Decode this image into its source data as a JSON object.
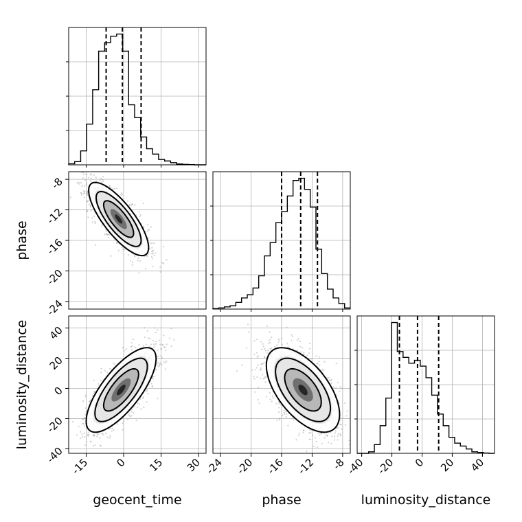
{
  "chart_data": {
    "type": "corner",
    "parameters": [
      {
        "name": "geocent_time",
        "label": "geocent_time",
        "ticks": [
          -15,
          0,
          15,
          30
        ],
        "lim": [
          -22,
          33
        ],
        "quantiles": [
          -7,
          -0.5,
          7
        ]
      },
      {
        "name": "phase",
        "label": "phase",
        "ticks": [
          -24,
          -20,
          -16,
          -12,
          -8
        ],
        "lim": [
          -25,
          -7
        ],
        "quantiles": [
          -16,
          -13.5,
          -11.3
        ]
      },
      {
        "name": "luminosity_distance",
        "label": "luminosity_distance",
        "ticks": [
          -40,
          -20,
          0,
          20,
          40
        ],
        "lim": [
          -43,
          48
        ],
        "quantiles": [
          -15,
          -3,
          11
        ]
      }
    ],
    "histograms": [
      {
        "param": "geocent_time",
        "bin_edges": [
          -22,
          -19.6,
          -17.2,
          -14.8,
          -12.4,
          -10,
          -7.6,
          -5.2,
          -2.8,
          -0.4,
          2,
          4.4,
          6.8,
          9.2,
          11.6,
          14,
          16.4,
          18.8,
          21.2,
          23.6,
          26,
          28.4,
          30.8,
          33
        ],
        "counts": [
          0.5,
          1.5,
          6.5,
          19,
          35,
          53,
          57,
          60,
          61,
          53,
          28,
          22,
          13,
          7.5,
          5,
          2.5,
          1.8,
          1,
          0.4,
          0.2,
          0.1,
          0,
          0
        ]
      },
      {
        "param": "phase",
        "bin_edges": [
          -25,
          -24.25,
          -23.5,
          -22.75,
          -22,
          -21.25,
          -20.5,
          -19.75,
          -19,
          -18.25,
          -17.5,
          -16.75,
          -16,
          -15.25,
          -14.5,
          -13.75,
          -13,
          -12.25,
          -11.5,
          -10.75,
          -10,
          -9.25,
          -8.5,
          -7.75,
          -7
        ],
        "counts": [
          0.2,
          0.5,
          1,
          1.5,
          3,
          5,
          6.5,
          9.5,
          15,
          24,
          30,
          39,
          44,
          51,
          58,
          59,
          54,
          46,
          27,
          16,
          9,
          5,
          2.5,
          0.5
        ]
      },
      {
        "param": "luminosity_distance",
        "bin_edges": [
          -43,
          -39.2,
          -35.4,
          -31.6,
          -27.8,
          -24,
          -20.2,
          -16.4,
          -12.6,
          -8.8,
          -5,
          -1.2,
          2.6,
          6.4,
          10.2,
          14,
          17.8,
          21.6,
          25.4,
          29.2,
          33,
          36.8,
          40.6,
          44.4,
          48
        ],
        "counts": [
          0,
          0,
          0.5,
          3,
          9.5,
          19,
          45,
          35,
          33,
          31,
          32,
          30,
          26,
          20,
          13.5,
          9.5,
          5.5,
          3.5,
          2.5,
          1.5,
          0.5,
          0.3,
          0.1,
          0
        ]
      }
    ],
    "pairs": [
      {
        "x": "geocent_time",
        "y": "phase",
        "center": [
          -2,
          -13.2
        ],
        "sd": [
          6,
          2.4
        ],
        "rho": -0.78,
        "n": 1400
      },
      {
        "x": "geocent_time",
        "y": "luminosity_distance",
        "center": [
          -1,
          -1
        ],
        "sd": [
          7,
          14
        ],
        "rho": 0.74,
        "n": 1400
      },
      {
        "x": "phase",
        "y": "luminosity_distance",
        "center": [
          -13.2,
          -1
        ],
        "sd": [
          2.4,
          14
        ],
        "rho": -0.58,
        "n": 1400
      }
    ],
    "grid": true
  }
}
